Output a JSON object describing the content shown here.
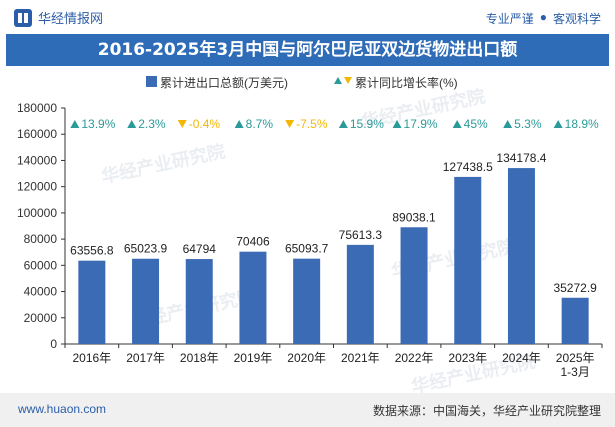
{
  "header": {
    "logo_text": "华经情报网",
    "tag1": "专业严谨",
    "tag_separator": "●",
    "tag2": "客观科学"
  },
  "watermark_text": "华经产业研究院",
  "footer": {
    "website": "www.huaon.com",
    "source": "数据来源：中国海关，华经产业研究院整理"
  },
  "colors": {
    "bar": "#3b6bb5",
    "title_bg": "#2f6cb8",
    "up_arrow": "#2b9a9a",
    "down_arrow": "#f2b705"
  },
  "chart_data": {
    "type": "bar",
    "title": "2016-2025年3月中国与阿尔巴尼亚双边货物进出口额",
    "categories": [
      "2016年",
      "2017年",
      "2018年",
      "2019年",
      "2020年",
      "2021年",
      "2022年",
      "2023年",
      "2024年",
      "2025年 1-3月"
    ],
    "series": [
      {
        "name": "累计进出口总额(万美元)",
        "type": "bar",
        "values": [
          63556.8,
          65023.9,
          64794,
          70406,
          65093.7,
          75613.3,
          89038.1,
          127438.5,
          134178.4,
          35272.9
        ],
        "labels": [
          "63556.8",
          "65023.9",
          "64794",
          "70406",
          "65093.7",
          "75613.3",
          "89038.1",
          "127438.5",
          "134178.4",
          "35272.9"
        ]
      },
      {
        "name": "累计同比增长率(%)",
        "type": "annotation",
        "values": [
          13.9,
          2.3,
          -0.4,
          8.7,
          -7.5,
          15.9,
          17.9,
          45,
          5.3,
          18.9
        ],
        "labels": [
          "13.9%",
          "2.3%",
          "-0.4%",
          "8.7%",
          "-7.5%",
          "15.9%",
          "17.9%",
          "45%",
          "5.3%",
          "18.9%"
        ]
      }
    ],
    "ylim": [
      0,
      180000
    ],
    "yticks": [
      0,
      20000,
      40000,
      60000,
      80000,
      100000,
      120000,
      140000,
      160000,
      180000
    ],
    "legend_position": "top-center",
    "grid": false
  }
}
